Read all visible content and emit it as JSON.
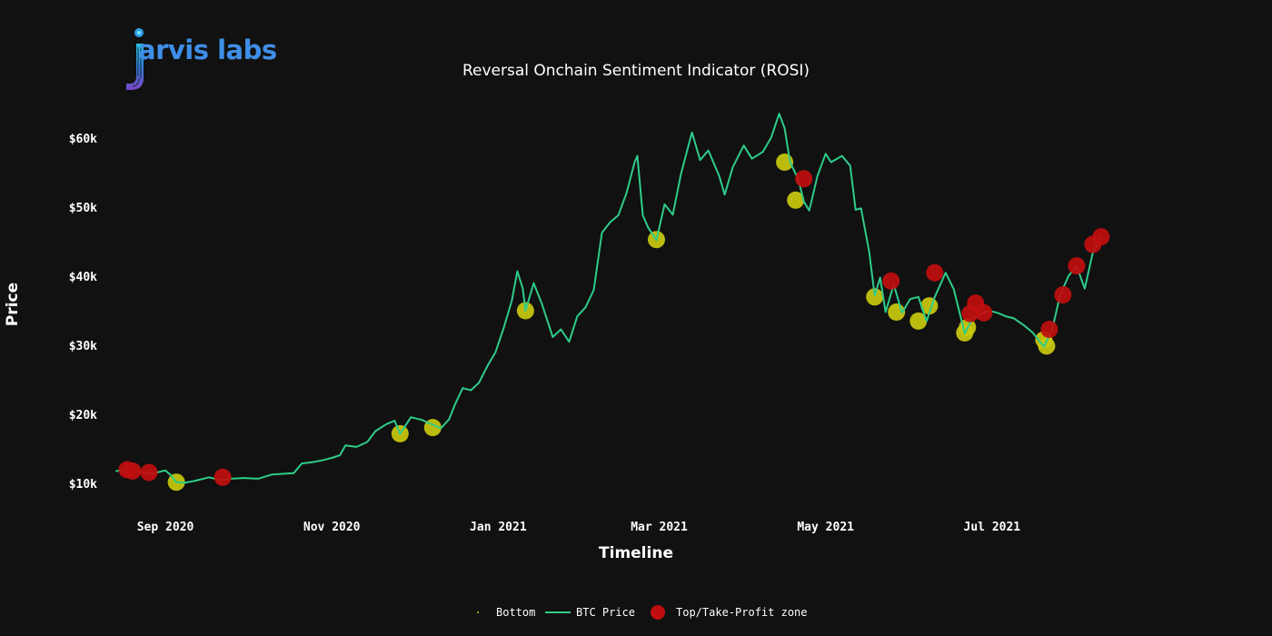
{
  "logo": {
    "text": "arvis labs",
    "colors": {
      "cyan": "#27c3e6",
      "blue": "#3f8ee8",
      "purple": "#7a45c8"
    }
  },
  "chart_data": {
    "type": "line",
    "title": "Reversal Onchain Sentiment Indicator (ROSI)",
    "xlabel": "Timeline",
    "ylabel": "Price",
    "x_ticks": [
      {
        "date": "2020-09-01",
        "label": "Sep 2020"
      },
      {
        "date": "2020-11-01",
        "label": "Nov 2020"
      },
      {
        "date": "2021-01-01",
        "label": "Jan 2021"
      },
      {
        "date": "2021-03-01",
        "label": "Mar 2021"
      },
      {
        "date": "2021-05-01",
        "label": "May 2021"
      },
      {
        "date": "2021-07-01",
        "label": "Jul 2021"
      }
    ],
    "y_ticks": [
      {
        "value": 10000,
        "label": "$10k"
      },
      {
        "value": 20000,
        "label": "$20k"
      },
      {
        "value": 30000,
        "label": "$30k"
      },
      {
        "value": 40000,
        "label": "$40k"
      },
      {
        "value": 50000,
        "label": "$50k"
      },
      {
        "value": 60000,
        "label": "$60k"
      }
    ],
    "xlim": [
      "2020-08-13",
      "2021-08-31"
    ],
    "ylim": [
      7000,
      65500
    ],
    "grid": false,
    "legend_position": "bottom-center",
    "series": [
      {
        "name": "BTC Price",
        "color": "#2ecc8a",
        "points": [
          [
            "2020-08-14",
            11800
          ],
          [
            "2020-08-17",
            12000
          ],
          [
            "2020-08-20",
            11800
          ],
          [
            "2020-08-23",
            11600
          ],
          [
            "2020-08-26",
            11400
          ],
          [
            "2020-08-29",
            11600
          ],
          [
            "2020-09-01",
            11900
          ],
          [
            "2020-09-03",
            11200
          ],
          [
            "2020-09-05",
            10200
          ],
          [
            "2020-09-08",
            10100
          ],
          [
            "2020-09-12",
            10400
          ],
          [
            "2020-09-17",
            10900
          ],
          [
            "2020-09-21",
            10500
          ],
          [
            "2020-09-25",
            10700
          ],
          [
            "2020-09-30",
            10800
          ],
          [
            "2020-10-05",
            10700
          ],
          [
            "2020-10-10",
            11300
          ],
          [
            "2020-10-14",
            11400
          ],
          [
            "2020-10-18",
            11500
          ],
          [
            "2020-10-21",
            12900
          ],
          [
            "2020-10-25",
            13100
          ],
          [
            "2020-10-29",
            13400
          ],
          [
            "2020-11-01",
            13700
          ],
          [
            "2020-11-04",
            14100
          ],
          [
            "2020-11-06",
            15500
          ],
          [
            "2020-11-10",
            15300
          ],
          [
            "2020-11-14",
            16000
          ],
          [
            "2020-11-17",
            17600
          ],
          [
            "2020-11-21",
            18600
          ],
          [
            "2020-11-24",
            19100
          ],
          [
            "2020-11-26",
            17200
          ],
          [
            "2020-11-30",
            19600
          ],
          [
            "2020-12-04",
            19200
          ],
          [
            "2020-12-08",
            18500
          ],
          [
            "2020-12-11",
            18000
          ],
          [
            "2020-12-14",
            19300
          ],
          [
            "2020-12-16",
            21300
          ],
          [
            "2020-12-19",
            23800
          ],
          [
            "2020-12-22",
            23500
          ],
          [
            "2020-12-25",
            24600
          ],
          [
            "2020-12-28",
            27000
          ],
          [
            "2020-12-31",
            29000
          ],
          [
            "2021-01-03",
            32500
          ],
          [
            "2021-01-06",
            36500
          ],
          [
            "2021-01-08",
            40700
          ],
          [
            "2021-01-10",
            38200
          ],
          [
            "2021-01-11",
            35000
          ],
          [
            "2021-01-14",
            39000
          ],
          [
            "2021-01-17",
            36000
          ],
          [
            "2021-01-21",
            31200
          ],
          [
            "2021-01-24",
            32300
          ],
          [
            "2021-01-27",
            30500
          ],
          [
            "2021-01-30",
            34200
          ],
          [
            "2021-02-02",
            35500
          ],
          [
            "2021-02-05",
            38000
          ],
          [
            "2021-02-08",
            46300
          ],
          [
            "2021-02-11",
            47800
          ],
          [
            "2021-02-14",
            48800
          ],
          [
            "2021-02-17",
            52000
          ],
          [
            "2021-02-20",
            56500
          ],
          [
            "2021-02-21",
            57400
          ],
          [
            "2021-02-23",
            48800
          ],
          [
            "2021-02-25",
            47000
          ],
          [
            "2021-02-28",
            45200
          ],
          [
            "2021-03-03",
            50400
          ],
          [
            "2021-03-06",
            48900
          ],
          [
            "2021-03-09",
            54800
          ],
          [
            "2021-03-13",
            60800
          ],
          [
            "2021-03-16",
            56800
          ],
          [
            "2021-03-19",
            58200
          ],
          [
            "2021-03-23",
            54500
          ],
          [
            "2021-03-25",
            51800
          ],
          [
            "2021-03-28",
            55800
          ],
          [
            "2021-04-01",
            58900
          ],
          [
            "2021-04-04",
            57000
          ],
          [
            "2021-04-08",
            58000
          ],
          [
            "2021-04-11",
            60000
          ],
          [
            "2021-04-14",
            63500
          ],
          [
            "2021-04-16",
            61400
          ],
          [
            "2021-04-18",
            56500
          ],
          [
            "2021-04-21",
            54000
          ],
          [
            "2021-04-23",
            50800
          ],
          [
            "2021-04-25",
            49500
          ],
          [
            "2021-04-28",
            54500
          ],
          [
            "2021-05-01",
            57700
          ],
          [
            "2021-05-03",
            56500
          ],
          [
            "2021-05-07",
            57400
          ],
          [
            "2021-05-10",
            56000
          ],
          [
            "2021-05-12",
            49600
          ],
          [
            "2021-05-14",
            49800
          ],
          [
            "2021-05-17",
            43500
          ],
          [
            "2021-05-19",
            37200
          ],
          [
            "2021-05-21",
            39800
          ],
          [
            "2021-05-23",
            34800
          ],
          [
            "2021-05-26",
            38800
          ],
          [
            "2021-05-29",
            34700
          ],
          [
            "2021-06-01",
            36700
          ],
          [
            "2021-06-04",
            37000
          ],
          [
            "2021-06-07",
            33500
          ],
          [
            "2021-06-10",
            37000
          ],
          [
            "2021-06-14",
            40500
          ],
          [
            "2021-06-17",
            38100
          ],
          [
            "2021-06-21",
            31700
          ],
          [
            "2021-06-24",
            34000
          ],
          [
            "2021-06-27",
            34600
          ],
          [
            "2021-06-30",
            35000
          ],
          [
            "2021-07-03",
            34700
          ],
          [
            "2021-07-06",
            34200
          ],
          [
            "2021-07-09",
            33900
          ],
          [
            "2021-07-13",
            32800
          ],
          [
            "2021-07-16",
            31800
          ],
          [
            "2021-07-20",
            29800
          ],
          [
            "2021-07-23",
            32200
          ],
          [
            "2021-07-26",
            37300
          ],
          [
            "2021-07-29",
            40000
          ],
          [
            "2021-08-01",
            41500
          ],
          [
            "2021-08-04",
            38200
          ],
          [
            "2021-08-07",
            43500
          ],
          [
            "2021-08-10",
            45600
          ]
        ]
      }
    ],
    "markers": [
      {
        "name": "Bottom",
        "color": "#c8c80e",
        "points": [
          [
            "2020-09-05",
            10200
          ],
          [
            "2020-11-26",
            17200
          ],
          [
            "2020-12-08",
            18100
          ],
          [
            "2021-01-11",
            35000
          ],
          [
            "2021-02-28",
            45300
          ],
          [
            "2021-04-16",
            56500
          ],
          [
            "2021-04-20",
            51000
          ],
          [
            "2021-05-19",
            37000
          ],
          [
            "2021-05-27",
            34800
          ],
          [
            "2021-06-04",
            33500
          ],
          [
            "2021-06-08",
            35700
          ],
          [
            "2021-06-21",
            31800
          ],
          [
            "2021-06-22",
            32600
          ],
          [
            "2021-07-20",
            30800
          ],
          [
            "2021-07-21",
            29900
          ]
        ]
      },
      {
        "name": "Top/Take-Profit zone",
        "color": "#c00e0e",
        "points": [
          [
            "2020-08-18",
            12000
          ],
          [
            "2020-08-20",
            11800
          ],
          [
            "2020-08-26",
            11600
          ],
          [
            "2020-09-22",
            10900
          ],
          [
            "2021-04-23",
            54100
          ],
          [
            "2021-05-25",
            39300
          ],
          [
            "2021-06-10",
            40500
          ],
          [
            "2021-06-23",
            34600
          ],
          [
            "2021-06-25",
            36100
          ],
          [
            "2021-06-28",
            34700
          ],
          [
            "2021-07-22",
            32300
          ],
          [
            "2021-07-27",
            37300
          ],
          [
            "2021-08-01",
            41500
          ],
          [
            "2021-08-07",
            44600
          ],
          [
            "2021-08-10",
            45700
          ]
        ]
      }
    ],
    "legend": [
      {
        "name": "Bottom",
        "kind": "tiny-dot"
      },
      {
        "name": "BTC Price",
        "kind": "line"
      },
      {
        "name": "Top/Take-Profit zone",
        "kind": "dot"
      }
    ]
  }
}
